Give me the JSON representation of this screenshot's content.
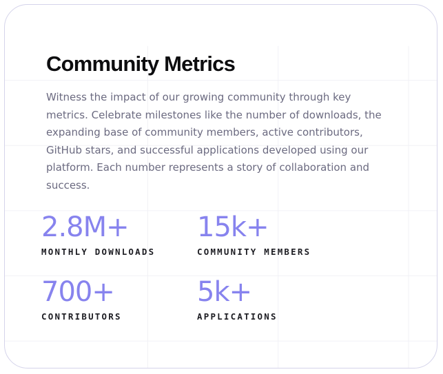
{
  "section": {
    "title": "Community Metrics",
    "description": "Witness the impact of our growing community through key metrics. Celebrate milestones like the number of downloads, the expanding base of community members, active contributors, GitHub stars, and successful applications developed using our platform. Each number represents a story of collaboration and success."
  },
  "metrics": [
    {
      "value": "2.8M+",
      "label": "MONTHLY DOWNLOADS"
    },
    {
      "value": "15k+",
      "label": "COMMUNITY MEMBERS"
    },
    {
      "value": "700+",
      "label": "CONTRIBUTORS"
    },
    {
      "value": "5k+",
      "label": "APPLICATIONS"
    }
  ],
  "colors": {
    "accent": "#8783ee",
    "title": "#0d0d0f",
    "body_text": "#6b6a80",
    "label_text": "#1c1c22",
    "card_border": "#d4d3ea",
    "grid_lines": "#f1f1f6"
  }
}
